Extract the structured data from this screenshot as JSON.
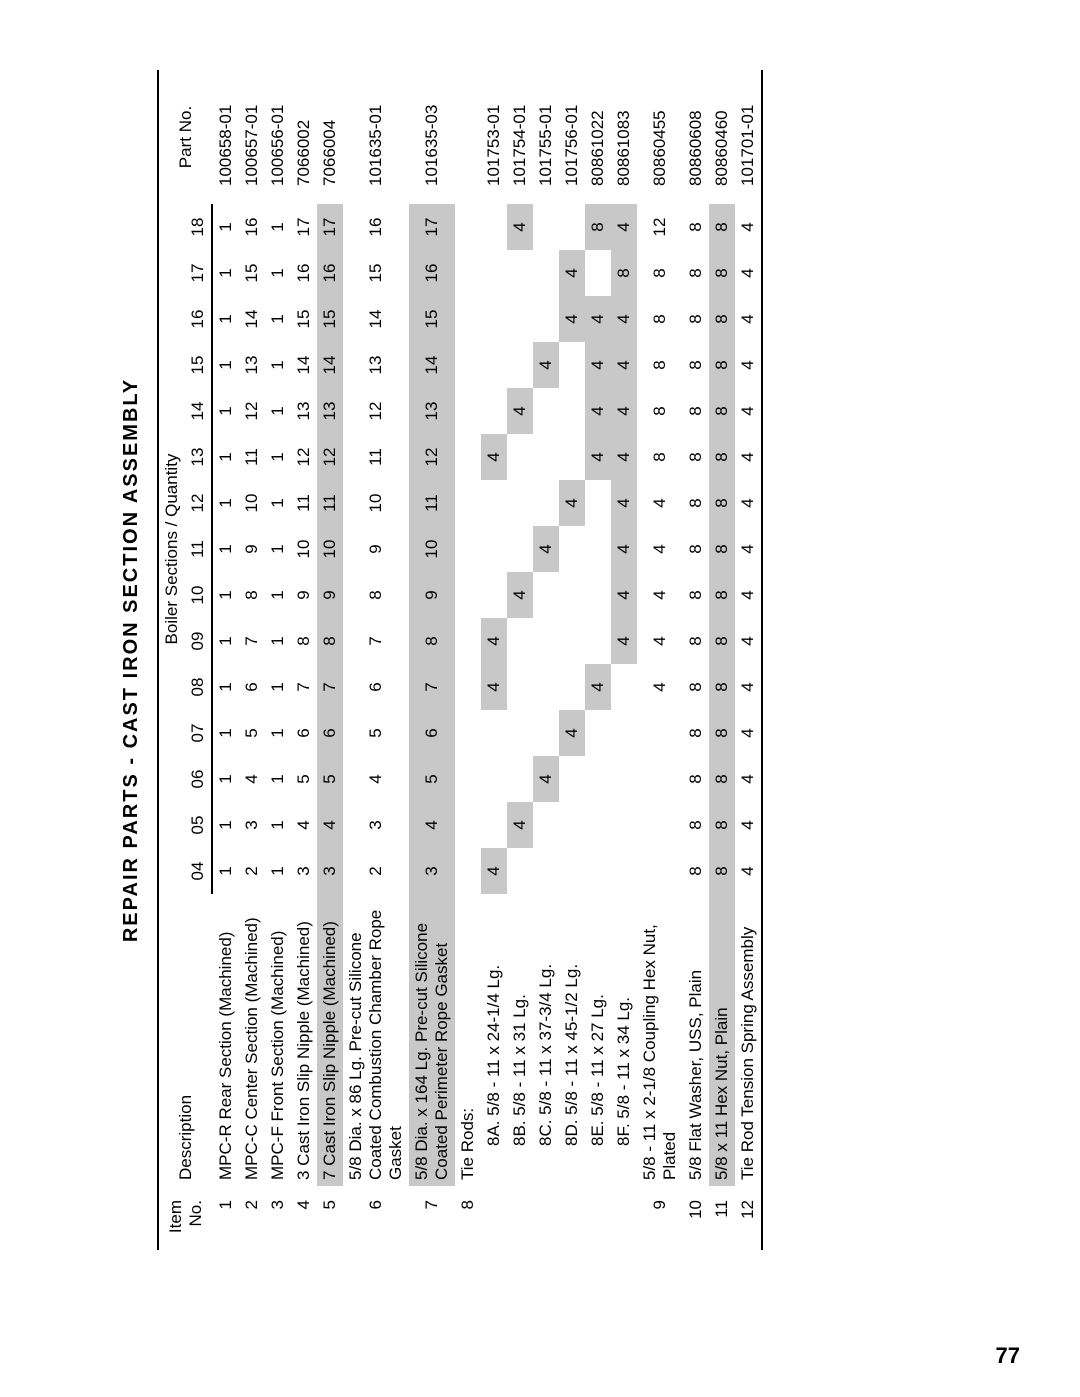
{
  "title": "REPAIR PARTS - CAST IRON SECTION ASSEMBLY",
  "page_number": "77",
  "headers": {
    "item_no_line1": "Item",
    "item_no_line2": "No.",
    "description": "Description",
    "sections_header": "Boiler Sections / Quantity",
    "part_no": "Part No.",
    "cols": [
      "04",
      "05",
      "06",
      "07",
      "08",
      "09",
      "10",
      "11",
      "12",
      "13",
      "14",
      "15",
      "16",
      "17",
      "18"
    ]
  },
  "rows": [
    {
      "item": "1",
      "desc": "MPC-R Rear Section (Machined)",
      "q": [
        "1",
        "1",
        "1",
        "1",
        "1",
        "1",
        "1",
        "1",
        "1",
        "1",
        "1",
        "1",
        "1",
        "1",
        "1"
      ],
      "part": "100658-01",
      "shade": false
    },
    {
      "item": "2",
      "desc": "MPC-C Center Section (Machined)",
      "q": [
        "2",
        "3",
        "4",
        "5",
        "6",
        "7",
        "8",
        "9",
        "10",
        "11",
        "12",
        "13",
        "14",
        "15",
        "16"
      ],
      "part": "100657-01",
      "shade": false
    },
    {
      "item": "3",
      "desc": "MPC-F Front Section (Machined)",
      "q": [
        "1",
        "1",
        "1",
        "1",
        "1",
        "1",
        "1",
        "1",
        "1",
        "1",
        "1",
        "1",
        "1",
        "1",
        "1"
      ],
      "part": "100656-01",
      "shade": false
    },
    {
      "item": "4",
      "desc": "3 Cast Iron Slip Nipple (Machined)",
      "q": [
        "3",
        "4",
        "5",
        "6",
        "7",
        "8",
        "9",
        "10",
        "11",
        "12",
        "13",
        "14",
        "15",
        "16",
        "17"
      ],
      "part": "7066002",
      "shade": false
    },
    {
      "item": "5",
      "desc": "7 Cast Iron Slip Nipple (Machined)",
      "q": [
        "3",
        "4",
        "5",
        "6",
        "7",
        "8",
        "9",
        "10",
        "11",
        "12",
        "13",
        "14",
        "15",
        "16",
        "17"
      ],
      "part": "7066004",
      "shade": true
    },
    {
      "item": "6",
      "desc": "5/8 Dia. x 86 Lg. Pre-cut Silicone Coated Combustion Chamber Rope Gasket",
      "q": [
        "2",
        "3",
        "4",
        "5",
        "6",
        "7",
        "8",
        "9",
        "10",
        "11",
        "12",
        "13",
        "14",
        "15",
        "16"
      ],
      "part": "101635-01",
      "shade": false,
      "twoLine": true
    },
    {
      "item": "7",
      "desc": "5/8 Dia. x 164 Lg. Pre-cut Silicone Coated Perimeter Rope Gasket",
      "q": [
        "3",
        "4",
        "5",
        "6",
        "7",
        "8",
        "9",
        "10",
        "11",
        "12",
        "13",
        "14",
        "15",
        "16",
        "17"
      ],
      "part": "101635-03",
      "shade": true,
      "twoLine": true
    },
    {
      "item": "8",
      "desc": "Tie Rods:",
      "q": [
        "",
        "",
        "",
        "",
        "",
        "",
        "",
        "",
        "",
        "",
        "",
        "",
        "",
        "",
        ""
      ],
      "part": "",
      "shade": false
    },
    {
      "item": "",
      "desc": "8A.   5/8 - 11 x 24-1/4 Lg.",
      "q": [
        "4",
        "",
        "",
        "",
        "4",
        "4",
        "",
        "",
        "",
        "4",
        "",
        "",
        "",
        "",
        ""
      ],
      "part": "101753-01",
      "shade": false,
      "sub": true,
      "stagger": true
    },
    {
      "item": "",
      "desc": "8B.   5/8 - 11 x 31 Lg.",
      "q": [
        "",
        "4",
        "",
        "",
        "",
        "",
        "4",
        "",
        "",
        "",
        "4",
        "",
        "",
        "",
        "4"
      ],
      "part": "101754-01",
      "shade": false,
      "sub": true,
      "stagger": true
    },
    {
      "item": "",
      "desc": "8C.   5/8 - 11 x 37-3/4 Lg.",
      "q": [
        "",
        "",
        "4",
        "",
        "",
        "",
        "",
        "4",
        "",
        "",
        "",
        "4",
        "",
        "",
        ""
      ],
      "part": "101755-01",
      "shade": false,
      "sub": true,
      "stagger": true
    },
    {
      "item": "",
      "desc": "8D.   5/8 - 11 x 45-1/2 Lg.",
      "q": [
        "",
        "",
        "",
        "4",
        "",
        "",
        "",
        "",
        "4",
        "",
        "",
        "",
        "4",
        "4",
        ""
      ],
      "part": "101756-01",
      "shade": false,
      "sub": true,
      "stagger": true
    },
    {
      "item": "",
      "desc": "8E.   5/8 - 11 x 27 Lg.",
      "q": [
        "",
        "",
        "",
        "",
        "4",
        "",
        "",
        "",
        "",
        "4",
        "4",
        "4",
        "4",
        "",
        "8"
      ],
      "part": "80861022",
      "shade": false,
      "sub": true,
      "stagger": true
    },
    {
      "item": "",
      "desc": "8F.   5/8 - 11 x 34 Lg.",
      "q": [
        "",
        "",
        "",
        "",
        "",
        "4",
        "4",
        "4",
        "4",
        "4",
        "4",
        "4",
        "4",
        "8",
        "4"
      ],
      "part": "80861083",
      "shade": false,
      "sub": true,
      "stagger": true
    },
    {
      "item": "9",
      "desc": "5/8 - 11 x 2-1/8 Coupling Hex Nut, Plated",
      "q": [
        "",
        "",
        "",
        "",
        "4",
        "4",
        "4",
        "4",
        "4",
        "8",
        "8",
        "8",
        "8",
        "8",
        "12"
      ],
      "part": "80860455",
      "shade": false
    },
    {
      "item": "10",
      "desc": "5/8 Flat Washer, USS, Plain",
      "q": [
        "8",
        "8",
        "8",
        "8",
        "8",
        "8",
        "8",
        "8",
        "8",
        "8",
        "8",
        "8",
        "8",
        "8",
        "8"
      ],
      "part": "80860608",
      "shade": false
    },
    {
      "item": "11",
      "desc": "5/8 x 11 Hex Nut, Plain",
      "q": [
        "8",
        "8",
        "8",
        "8",
        "8",
        "8",
        "8",
        "8",
        "8",
        "8",
        "8",
        "8",
        "8",
        "8",
        "8"
      ],
      "part": "80860460",
      "shade": true
    },
    {
      "item": "12",
      "desc": "Tie Rod Tension Spring Assembly",
      "q": [
        "4",
        "4",
        "4",
        "4",
        "4",
        "4",
        "4",
        "4",
        "4",
        "4",
        "4",
        "4",
        "4",
        "4",
        "4"
      ],
      "part": "101701-01",
      "shade": false
    }
  ],
  "stagger_shade_index": {
    "8A": [
      0,
      4,
      5,
      9
    ],
    "8B": [
      1,
      6,
      10,
      14
    ],
    "8C": [
      2,
      7,
      11
    ],
    "8D": [
      3,
      8,
      12,
      13
    ],
    "8E": [
      4,
      9,
      10,
      11,
      12,
      14
    ],
    "8F": [
      5,
      6,
      7,
      8,
      9,
      10,
      11,
      12,
      13,
      14
    ]
  },
  "colors": {
    "background": "#ffffff",
    "text": "#000000",
    "shade": "#c8c8c8",
    "rule": "#000000"
  }
}
